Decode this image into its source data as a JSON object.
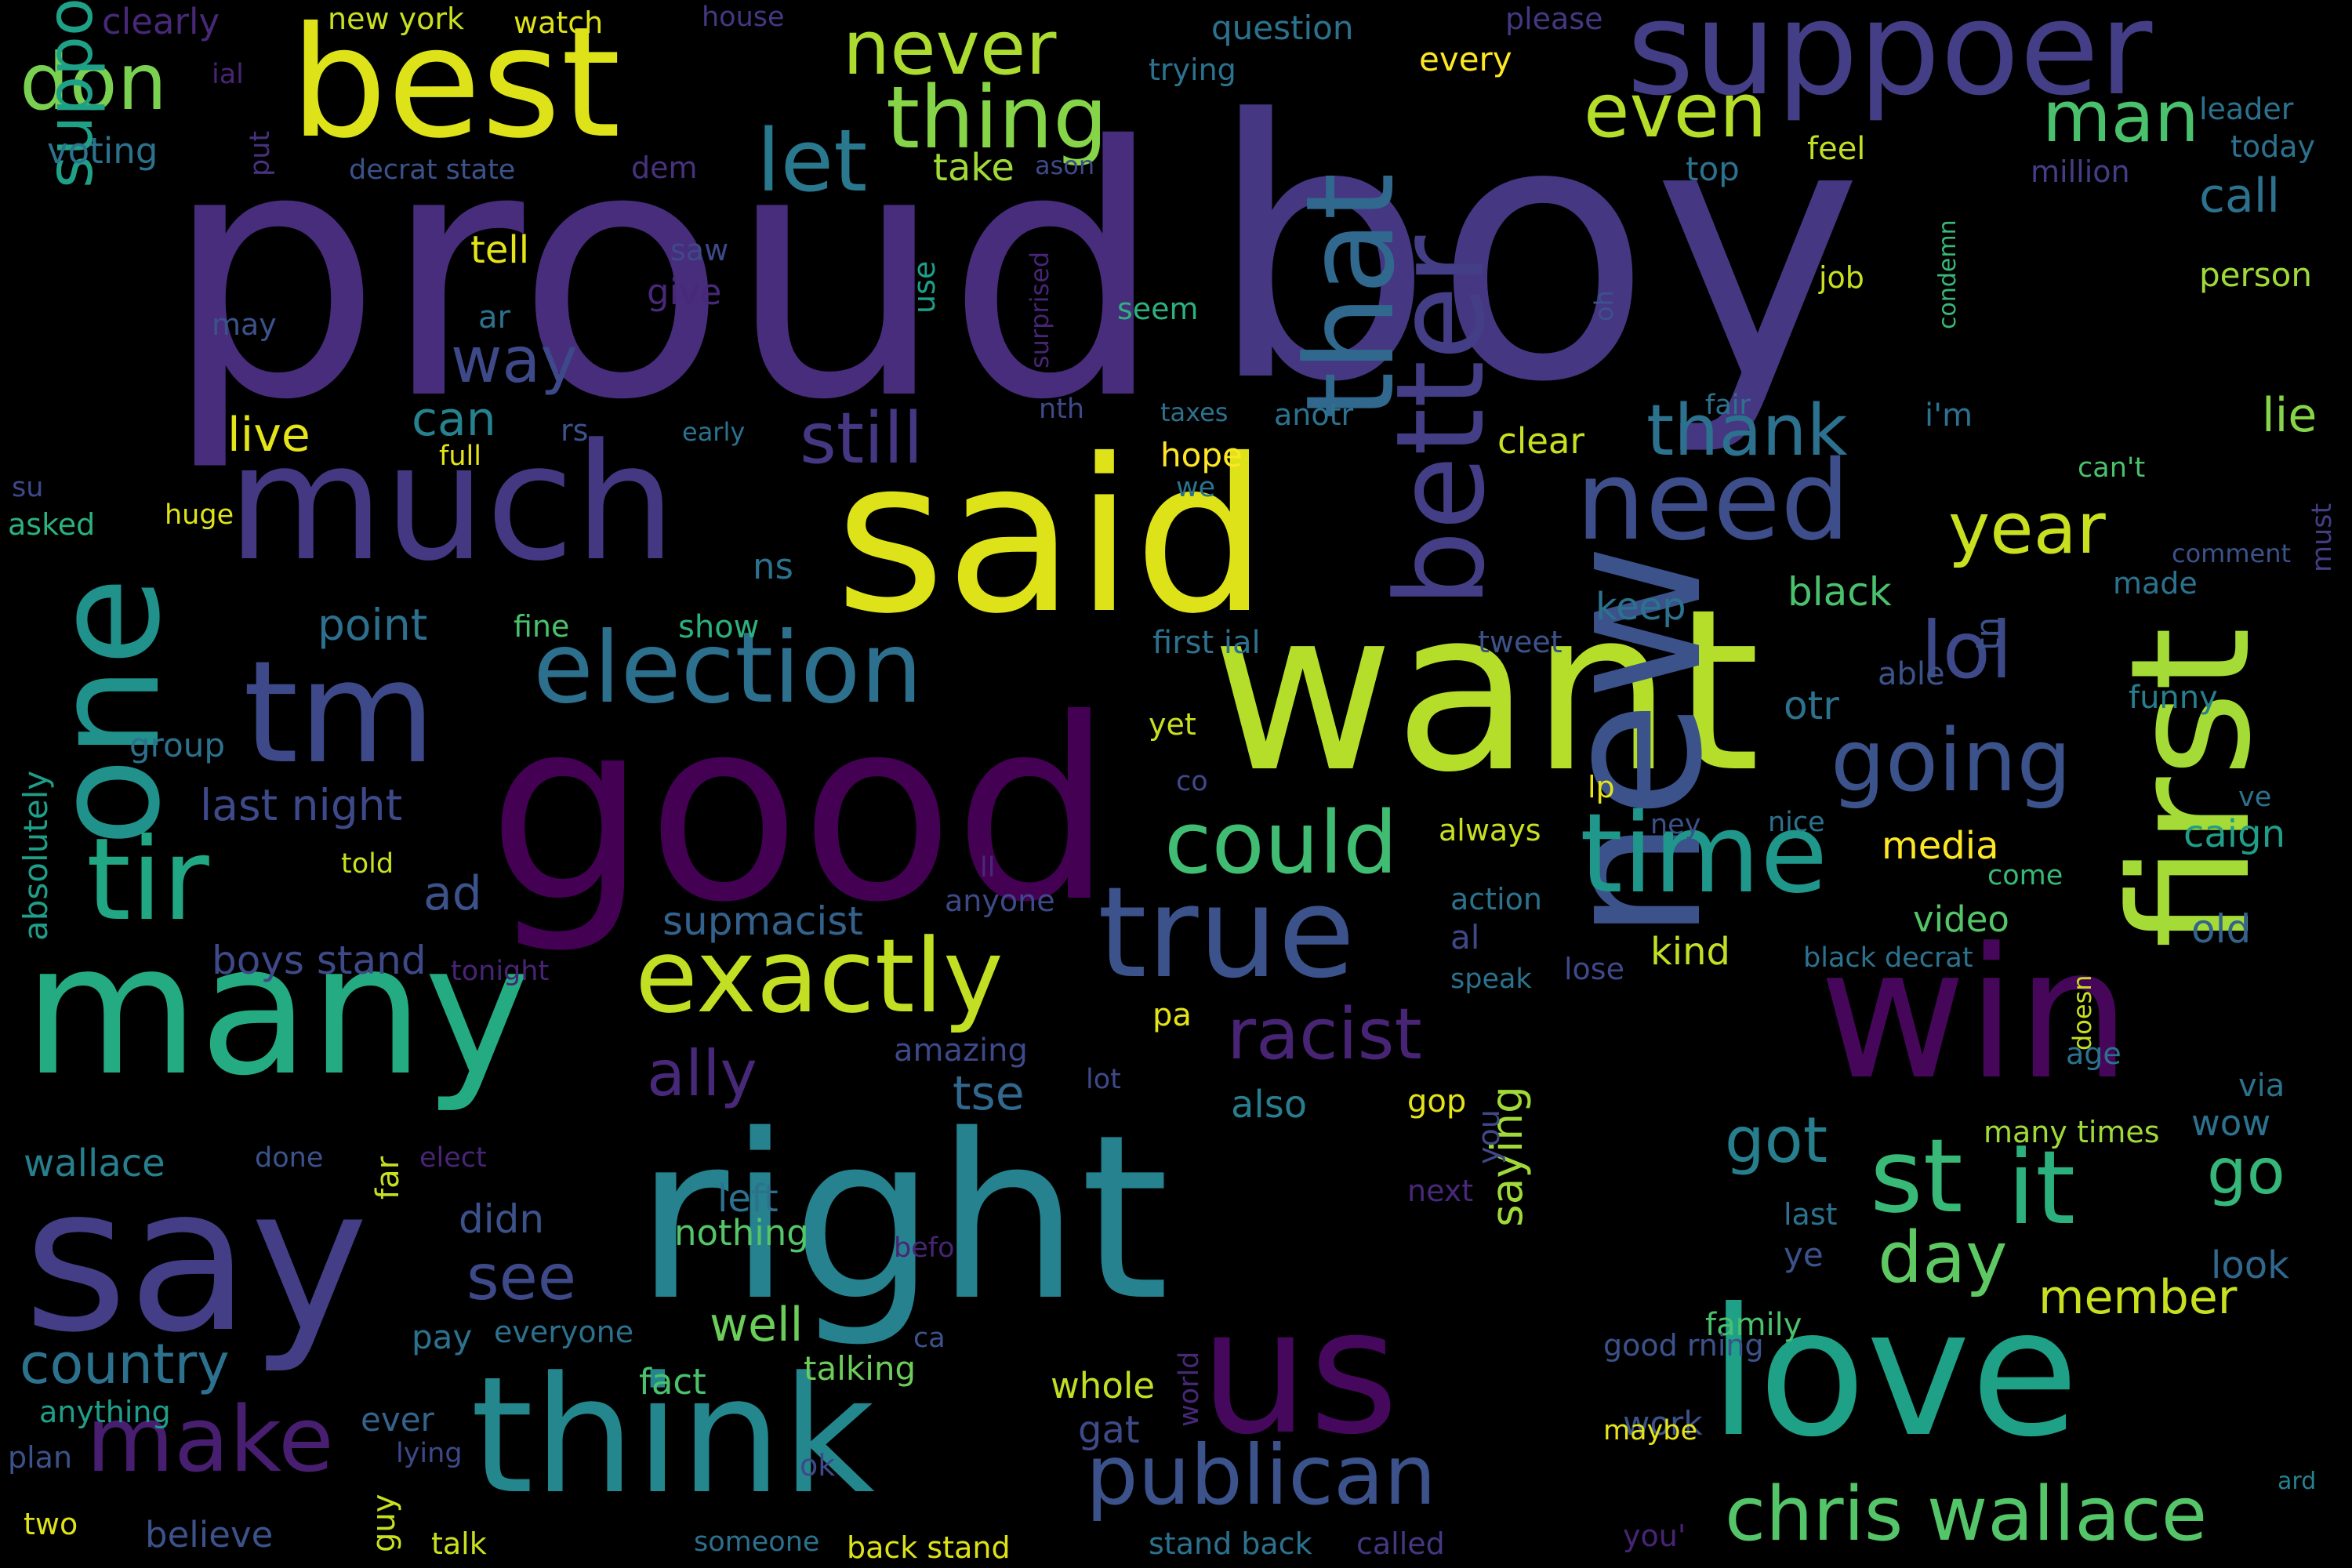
{
  "colors": {
    "background": "#000000",
    "palette": [
      "#440154",
      "#46327e",
      "#365c8d",
      "#277f8e",
      "#1fa187",
      "#4ac16d",
      "#a0da39",
      "#fde725"
    ]
  },
  "words": [
    {
      "text": "proud",
      "color": "#472d7b"
    },
    {
      "text": "boy",
      "color": "#453781"
    },
    {
      "text": "good",
      "color": "#440154"
    },
    {
      "text": "want",
      "color": "#b5de2b"
    },
    {
      "text": "said",
      "color": "#dde318"
    },
    {
      "text": "many",
      "color": "#25ab82"
    },
    {
      "text": "right",
      "color": "#26828e"
    },
    {
      "text": "say",
      "color": "#433e85"
    },
    {
      "text": "new",
      "color": "#3b528b"
    },
    {
      "text": "win",
      "color": "#46075a"
    },
    {
      "text": "love",
      "color": "#1fa187"
    },
    {
      "text": "think",
      "color": "#24878e"
    },
    {
      "text": "much",
      "color": "#453882"
    },
    {
      "text": "best",
      "color": "#dde318"
    },
    {
      "text": "suppoer",
      "color": "#433e85"
    },
    {
      "text": "one",
      "color": "#21918c"
    },
    {
      "text": "first",
      "color": "#a5db36"
    },
    {
      "text": "us",
      "color": "#46085c"
    },
    {
      "text": "tm",
      "color": "#3e4989"
    },
    {
      "text": "true",
      "color": "#3b528b"
    },
    {
      "text": "better",
      "color": "#433e85"
    },
    {
      "text": "that",
      "color": "#31688e"
    },
    {
      "text": "need",
      "color": "#3d4e8a"
    },
    {
      "text": "time",
      "color": "#1f978b"
    },
    {
      "text": "exactly",
      "color": "#c2df23"
    },
    {
      "text": "election",
      "color": "#2d708e"
    },
    {
      "text": "tir",
      "color": "#22a785"
    },
    {
      "text": "thing",
      "color": "#86d549"
    },
    {
      "text": "let",
      "color": "#2a788e"
    },
    {
      "text": "make",
      "color": "#481f70"
    },
    {
      "text": "publican",
      "color": "#3b528b"
    },
    {
      "text": "chris wallace",
      "color": "#54c568"
    },
    {
      "text": "going",
      "color": "#3b528b"
    },
    {
      "text": "could",
      "color": "#40bd72"
    },
    {
      "text": "don",
      "color": "#7ad151"
    },
    {
      "text": "never",
      "color": "#addc30"
    },
    {
      "text": "even",
      "color": "#b5de2b"
    },
    {
      "text": "man",
      "color": "#4ac16d"
    },
    {
      "text": "lol",
      "color": "#3e4989"
    },
    {
      "text": "year",
      "color": "#c8e020"
    },
    {
      "text": "st",
      "color": "#38b977"
    },
    {
      "text": "it",
      "color": "#2cb17e"
    },
    {
      "text": "racist",
      "color": "#482475"
    },
    {
      "text": "ally",
      "color": "#482878"
    },
    {
      "text": "still",
      "color": "#453781"
    },
    {
      "text": "thank",
      "color": "#2c728e"
    },
    {
      "text": "way",
      "color": "#3e4989"
    },
    {
      "text": "suppo",
      "color": "#1fa187"
    },
    {
      "text": "day",
      "color": "#5ec962"
    },
    {
      "text": "go",
      "color": "#35b779"
    },
    {
      "text": "got",
      "color": "#277f8e"
    },
    {
      "text": "see",
      "color": "#3e4989"
    },
    {
      "text": "country",
      "color": "#2c728e"
    },
    {
      "text": "well",
      "color": "#6ccd5a"
    },
    {
      "text": "member",
      "color": "#c8e020"
    },
    {
      "text": "lie",
      "color": "#86d549"
    },
    {
      "text": "call",
      "color": "#2c728e"
    },
    {
      "text": "can",
      "color": "#26828e"
    },
    {
      "text": "live",
      "color": "#e5e419"
    },
    {
      "text": "point",
      "color": "#2d708e"
    },
    {
      "text": "ad",
      "color": "#3b528b"
    },
    {
      "text": "tse",
      "color": "#31688e"
    },
    {
      "text": "saying",
      "color": "#a0da39"
    },
    {
      "text": "keep",
      "color": "#2c728e"
    },
    {
      "text": "black",
      "color": "#4ac16d"
    },
    {
      "text": "otr",
      "color": "#2c728e"
    },
    {
      "text": "kind",
      "color": "#c2df23"
    },
    {
      "text": "media",
      "color": "#fde725"
    },
    {
      "text": "caign",
      "color": "#1f9e89"
    },
    {
      "text": "video",
      "color": "#54c568"
    },
    {
      "text": "old",
      "color": "#33638d"
    },
    {
      "text": "wow",
      "color": "#2c728e"
    },
    {
      "text": "look",
      "color": "#31688e"
    },
    {
      "text": "last night",
      "color": "#3e4989"
    },
    {
      "text": "boys stand",
      "color": "#3e4989"
    },
    {
      "text": "supmacist",
      "color": "#33638d"
    },
    {
      "text": "also",
      "color": "#277f8e"
    },
    {
      "text": "didn",
      "color": "#3b528b"
    },
    {
      "text": "left",
      "color": "#2c728e"
    },
    {
      "text": "nothing",
      "color": "#54c568"
    },
    {
      "text": "talking",
      "color": "#6ccd5a"
    },
    {
      "text": "fact",
      "color": "#4ac16d"
    },
    {
      "text": "gat",
      "color": "#3e4989"
    },
    {
      "text": "whole",
      "color": "#c2df23"
    },
    {
      "text": "work",
      "color": "#3b528b"
    },
    {
      "text": "family",
      "color": "#4ac16d"
    },
    {
      "text": "wallace",
      "color": "#277f8e"
    },
    {
      "text": "done",
      "color": "#3b528b"
    },
    {
      "text": "elect",
      "color": "#482475"
    },
    {
      "text": "next",
      "color": "#482878"
    },
    {
      "text": "ye",
      "color": "#3b528b"
    },
    {
      "text": "last",
      "color": "#2c728e"
    },
    {
      "text": "everyone",
      "color": "#2d708e"
    },
    {
      "text": "pay",
      "color": "#2c728e"
    },
    {
      "text": "ever",
      "color": "#33638d"
    },
    {
      "text": "anything",
      "color": "#1f9e89"
    },
    {
      "text": "plan",
      "color": "#3b528b"
    },
    {
      "text": "lying",
      "color": "#3e4989"
    },
    {
      "text": "guy",
      "color": "#c8e020"
    },
    {
      "text": "two",
      "color": "#dde318"
    },
    {
      "text": "believe",
      "color": "#3b528b"
    },
    {
      "text": "talk",
      "color": "#c8e020"
    },
    {
      "text": "someone",
      "color": "#2d708e"
    },
    {
      "text": "back stand",
      "color": "#dde318"
    },
    {
      "text": "stand back",
      "color": "#2c728e"
    },
    {
      "text": "called",
      "color": "#453781"
    },
    {
      "text": "you'",
      "color": "#482475"
    },
    {
      "text": "ard",
      "color": "#26828e"
    },
    {
      "text": "ok",
      "color": "#3e4989"
    },
    {
      "text": "maybe",
      "color": "#e5e419"
    },
    {
      "text": "good rning",
      "color": "#3b528b"
    },
    {
      "text": "clearly",
      "color": "#482878"
    },
    {
      "text": "new york",
      "color": "#c8e020"
    },
    {
      "text": "watch",
      "color": "#dde318"
    },
    {
      "text": "house",
      "color": "#453781"
    },
    {
      "text": "question",
      "color": "#2c728e"
    },
    {
      "text": "please",
      "color": "#453781"
    },
    {
      "text": "trying",
      "color": "#2c728e"
    },
    {
      "text": "every",
      "color": "#fde725"
    },
    {
      "text": "ial",
      "color": "#482475"
    },
    {
      "text": "voting",
      "color": "#2c728e"
    },
    {
      "text": "decrat state",
      "color": "#3b528b"
    },
    {
      "text": "dem",
      "color": "#46327e"
    },
    {
      "text": "take",
      "color": "#a0da39"
    },
    {
      "text": "ason",
      "color": "#3e4989"
    },
    {
      "text": "top",
      "color": "#2c728e"
    },
    {
      "text": "feel",
      "color": "#c2df23"
    },
    {
      "text": "leader",
      "color": "#2c728e"
    },
    {
      "text": "today",
      "color": "#2c728e"
    },
    {
      "text": "million",
      "color": "#433e85"
    },
    {
      "text": "put",
      "color": "#46327e"
    },
    {
      "text": "tell",
      "color": "#e5e419"
    },
    {
      "text": "saw",
      "color": "#3e4989"
    },
    {
      "text": "give",
      "color": "#482878"
    },
    {
      "text": "ar",
      "color": "#2c728e"
    },
    {
      "text": "may",
      "color": "#3b528b"
    },
    {
      "text": "use",
      "color": "#1f9e89"
    },
    {
      "text": "surprised",
      "color": "#482475"
    },
    {
      "text": "seem",
      "color": "#2cb17e"
    },
    {
      "text": "job",
      "color": "#c8e020"
    },
    {
      "text": "oh",
      "color": "#3b528b"
    },
    {
      "text": "condemn",
      "color": "#38b977"
    },
    {
      "text": "person",
      "color": "#a0da39"
    },
    {
      "text": "nth",
      "color": "#3e4989"
    },
    {
      "text": "taxes",
      "color": "#2c728e"
    },
    {
      "text": "anotr",
      "color": "#2c728e"
    },
    {
      "text": "fair",
      "color": "#2c728e"
    },
    {
      "text": "i'm",
      "color": "#2c728e"
    },
    {
      "text": "clear",
      "color": "#c8e020"
    },
    {
      "text": "hope",
      "color": "#fde725"
    },
    {
      "text": "we",
      "color": "#2c728e"
    },
    {
      "text": "can't",
      "color": "#4ac16d"
    },
    {
      "text": "rs",
      "color": "#3b528b"
    },
    {
      "text": "early",
      "color": "#2c728e"
    },
    {
      "text": "full",
      "color": "#e5e419"
    },
    {
      "text": "su",
      "color": "#3e4989"
    },
    {
      "text": "asked",
      "color": "#2cb17e"
    },
    {
      "text": "huge",
      "color": "#dde318"
    },
    {
      "text": "ns",
      "color": "#2c728e"
    },
    {
      "text": "comment",
      "color": "#3b528b"
    },
    {
      "text": "made",
      "color": "#2c728e"
    },
    {
      "text": "must",
      "color": "#433e85"
    },
    {
      "text": "tn",
      "color": "#3b528b"
    },
    {
      "text": "fine",
      "color": "#4ac16d"
    },
    {
      "text": "show",
      "color": "#2cb17e"
    },
    {
      "text": "first ial",
      "color": "#2c728e"
    },
    {
      "text": "tweet",
      "color": "#3b528b"
    },
    {
      "text": "able",
      "color": "#3b528b"
    },
    {
      "text": "funny",
      "color": "#277f8e"
    },
    {
      "text": "group",
      "color": "#2c728e"
    },
    {
      "text": "absolutely",
      "color": "#1f9e89"
    },
    {
      "text": "yet",
      "color": "#c8e020"
    },
    {
      "text": "co",
      "color": "#3e4989"
    },
    {
      "text": "lp",
      "color": "#e5e419"
    },
    {
      "text": "ve",
      "color": "#2c728e"
    },
    {
      "text": "told",
      "color": "#c8e020"
    },
    {
      "text": "always",
      "color": "#c8e020"
    },
    {
      "text": "ney",
      "color": "#3b528b"
    },
    {
      "text": "nice",
      "color": "#2c728e"
    },
    {
      "text": "ll",
      "color": "#482878"
    },
    {
      "text": "anyone",
      "color": "#3e4989"
    },
    {
      "text": "come",
      "color": "#38b977"
    },
    {
      "text": "action",
      "color": "#2c728e"
    },
    {
      "text": "al",
      "color": "#3e4989"
    },
    {
      "text": "black decrat",
      "color": "#2c728e"
    },
    {
      "text": "tonight",
      "color": "#482475"
    },
    {
      "text": "speak",
      "color": "#2c728e"
    },
    {
      "text": "lose",
      "color": "#3e4989"
    },
    {
      "text": "doesn",
      "color": "#c8e020"
    },
    {
      "text": "amazing",
      "color": "#3e4989"
    },
    {
      "text": "pa",
      "color": "#e5e419"
    },
    {
      "text": "age",
      "color": "#2c728e"
    },
    {
      "text": "via",
      "color": "#2c728e"
    },
    {
      "text": "lot",
      "color": "#3e4989"
    },
    {
      "text": "gop",
      "color": "#e5e419"
    },
    {
      "text": "you",
      "color": "#3e4989"
    },
    {
      "text": "many times",
      "color": "#a0da39"
    },
    {
      "text": "far",
      "color": "#c8e020"
    },
    {
      "text": "befo",
      "color": "#482475"
    },
    {
      "text": "ca",
      "color": "#3b528b"
    },
    {
      "text": "world",
      "color": "#482878"
    }
  ]
}
